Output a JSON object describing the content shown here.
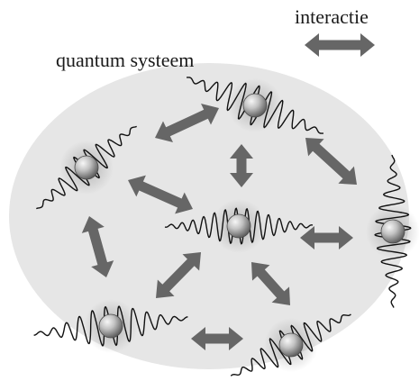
{
  "legend": {
    "label": "interactie"
  },
  "system": {
    "label": "quantum systeem"
  },
  "colors": {
    "system_fill": "#e6e6e6",
    "arrow": "#666666",
    "wave": "#111111",
    "particle_light": "#f2f2f2",
    "particle_dark": "#6f6f6f"
  }
}
